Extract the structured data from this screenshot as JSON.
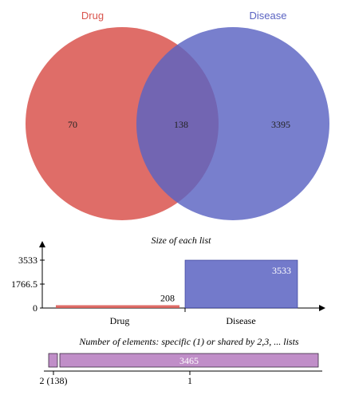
{
  "colors": {
    "drug": "#d9544d",
    "disease": "#5a63c2",
    "shared_bar": "#c08ec8",
    "axis": "#000000"
  },
  "chart_data": [
    {
      "type": "venn",
      "sets": [
        {
          "name": "Drug",
          "total": 208
        },
        {
          "name": "Disease",
          "total": 3533
        }
      ],
      "regions": {
        "drug_only": 70,
        "shared": 138,
        "disease_only": 3395
      },
      "labels": {
        "drug": "Drug",
        "disease": "Disease",
        "drug_only": "70",
        "shared": "138",
        "disease_only": "3395"
      }
    },
    {
      "type": "bar",
      "title": "Size of each list",
      "categories": [
        "Drug",
        "Disease"
      ],
      "values": [
        208,
        3533
      ],
      "value_labels": [
        "208",
        "3533"
      ],
      "ylim": [
        0,
        3533
      ],
      "yticks": [
        0,
        1766.5,
        3533
      ],
      "ytick_labels": [
        "0",
        "1766.5",
        "3533"
      ]
    },
    {
      "type": "bar",
      "title": "Number of elements: specific (1) or shared by 2,3, ... lists",
      "orientation": "horizontal-stacked",
      "segments": [
        {
          "shared_by": 2,
          "count": 138,
          "axis_label": "2 (138)",
          "bar_label": ""
        },
        {
          "shared_by": 1,
          "count": 3465,
          "axis_label": "1",
          "bar_label": "3465"
        }
      ]
    }
  ]
}
